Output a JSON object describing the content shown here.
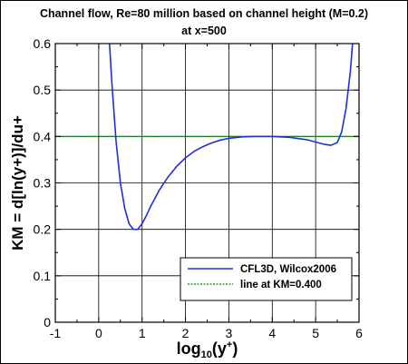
{
  "chart_data": {
    "type": "line",
    "title": "Channel flow, Re=80 million based on channel height (M=0.2)",
    "subtitle": "at x=500",
    "xlabel_main": "log",
    "xlabel_sub": "10",
    "xlabel_arg": "(y",
    "xlabel_sup": "+",
    "xlabel_close": ")",
    "ylabel": "KM = d[ln(y+)]/du+",
    "xlim": [
      -1,
      6
    ],
    "ylim": [
      0,
      0.6
    ],
    "x_ticks": [
      "-1",
      "0",
      "1",
      "2",
      "3",
      "4",
      "5",
      "6"
    ],
    "y_ticks": [
      "0",
      "0.1",
      "0.2",
      "0.3",
      "0.4",
      "0.5",
      "0.6"
    ],
    "grid": true,
    "legend_position": "bottom-right",
    "series": [
      {
        "name": "CFL3D, Wilcox2006",
        "color": "#1f2fd6",
        "style": "solid",
        "x": [
          0.25,
          0.3,
          0.35,
          0.4,
          0.5,
          0.6,
          0.7,
          0.8,
          0.9,
          1.0,
          1.1,
          1.2,
          1.4,
          1.6,
          1.8,
          2.0,
          2.2,
          2.4,
          2.6,
          2.8,
          3.0,
          3.3,
          3.6,
          4.0,
          4.4,
          4.8,
          5.0,
          5.2,
          5.35,
          5.5,
          5.6,
          5.7,
          5.8,
          5.85
        ],
        "y": [
          0.6,
          0.52,
          0.455,
          0.39,
          0.3,
          0.245,
          0.212,
          0.2,
          0.2,
          0.212,
          0.23,
          0.25,
          0.285,
          0.313,
          0.336,
          0.354,
          0.368,
          0.378,
          0.386,
          0.392,
          0.396,
          0.399,
          0.4,
          0.4,
          0.398,
          0.393,
          0.388,
          0.383,
          0.381,
          0.387,
          0.41,
          0.46,
          0.54,
          0.6
        ]
      },
      {
        "name": "line at KM=0.400",
        "color": "#0fae12",
        "style": "dotted",
        "x": [
          -1,
          6
        ],
        "y": [
          0.4,
          0.4
        ]
      }
    ]
  }
}
